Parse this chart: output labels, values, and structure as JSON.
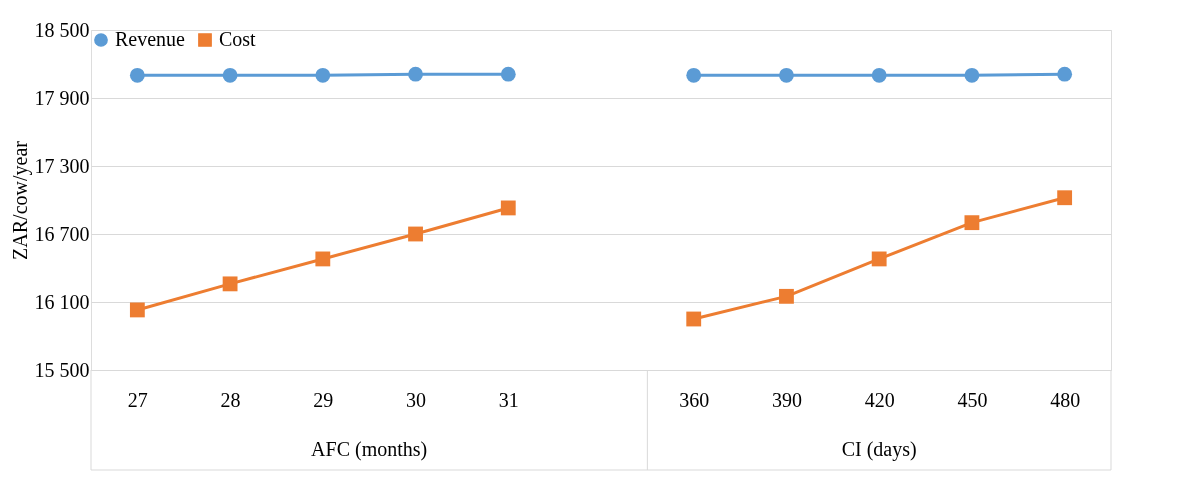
{
  "chart_data": {
    "type": "line",
    "ylabel": "ZAR/cow/year",
    "categories": [
      "27",
      "28",
      "29",
      "30",
      "31",
      null,
      "360",
      "390",
      "420",
      "450",
      "480"
    ],
    "series": [
      {
        "name": "Revenue",
        "color": "#5b9bd5",
        "marker": "circle",
        "values": [
          18100,
          18100,
          18100,
          18110,
          18110,
          null,
          18100,
          18100,
          18100,
          18100,
          18110
        ]
      },
      {
        "name": "Cost",
        "color": "#ed7d31",
        "marker": "square",
        "values": [
          16030,
          16260,
          16480,
          16700,
          16930,
          null,
          15950,
          16150,
          16480,
          16800,
          17020
        ]
      }
    ],
    "annotations": [
      "AFC (months)",
      "CI (days)"
    ],
    "ylim": [
      15500,
      18500
    ],
    "yticks": [
      {
        "value": 15500,
        "label": "15 500"
      },
      {
        "value": 16100,
        "label": "16 100"
      },
      {
        "value": 16700,
        "label": "16 700"
      },
      {
        "value": 17300,
        "label": "17 300"
      },
      {
        "value": 17900,
        "label": "17 900"
      },
      {
        "value": 18500,
        "label": "18 500"
      }
    ],
    "grid": "y",
    "legend": "top left",
    "line_style": "solid"
  }
}
